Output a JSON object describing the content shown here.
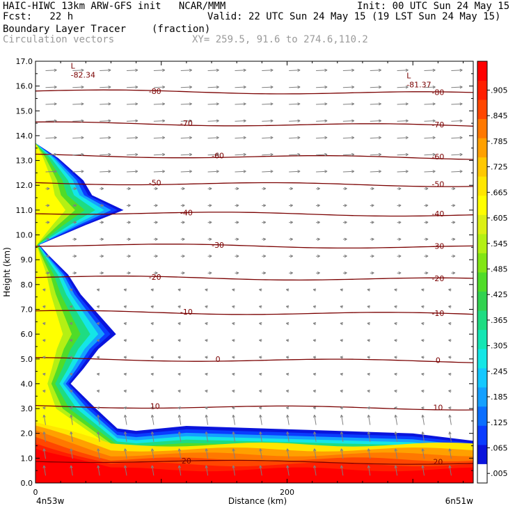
{
  "header": {
    "line1_left": "HAIC-HIWC 13km ARW-GFS init   NCAR/MMM",
    "line1_right": "Init: 00 UTC Sun 24 May 15",
    "line2_left": "Fcst:   22 h",
    "line2_right": "Valid: 22 UTC Sun 24 May 15 (19 LST Sun 24 May 15)",
    "field_name": "Boundary Layer Tracer",
    "field_units": "(fraction)",
    "vector_name": "Circulation vectors",
    "xy_text": "XY= 259.5, 91.6 to 274.6,110.2"
  },
  "colors": {
    "contour": "#7a0000",
    "vector": "#808080",
    "colorbar": [
      "#ffffff",
      "#0a14dc",
      "#0a3cff",
      "#0a6eff",
      "#14a0ff",
      "#14c8ff",
      "#14e6e6",
      "#14e6b4",
      "#1edc82",
      "#32d250",
      "#50dc28",
      "#82e614",
      "#b4f014",
      "#dcf014",
      "#ffff00",
      "#ffe600",
      "#ffc800",
      "#ffa000",
      "#ff7800",
      "#ff4600",
      "#ff1e00",
      "#ff0000"
    ]
  },
  "chart_data": {
    "type": "heatmap",
    "title": "Boundary Layer Tracer",
    "units": "(fraction)",
    "overlay": "Circulation vectors",
    "xlabel": "Distance (km)",
    "ylabel": "Height (km)",
    "xlim": [
      0,
      348
    ],
    "ylim": [
      0,
      17
    ],
    "x_ticks": [
      0,
      200
    ],
    "x_endpoints": [
      "4n53w",
      "6n51w"
    ],
    "y_ticks": [
      "0.0",
      "1.0",
      "2.0",
      "3.0",
      "4.0",
      "5.0",
      "6.0",
      "7.0",
      "8.0",
      "9.0",
      "10.0",
      "11.0",
      "12.0",
      "13.0",
      "14.0",
      "15.0",
      "16.0",
      "17.0"
    ],
    "colorbar_ticks": [
      ".005",
      ".065",
      ".125",
      ".185",
      ".245",
      ".305",
      ".365",
      ".425",
      ".485",
      ".545",
      ".605",
      ".665",
      ".725",
      ".785",
      ".845",
      ".905"
    ],
    "plume_profile": {
      "description": "left-edge extent of tracer plume (height km, distance km)",
      "points": [
        [
          0.0,
          348
        ],
        [
          1.7,
          348
        ],
        [
          2.0,
          300
        ],
        [
          2.3,
          120
        ],
        [
          2.1,
          80
        ],
        [
          2.2,
          65
        ],
        [
          3.0,
          48
        ],
        [
          4.0,
          28
        ],
        [
          4.6,
          38
        ],
        [
          5.4,
          50
        ],
        [
          6.0,
          64
        ],
        [
          6.8,
          50
        ],
        [
          7.6,
          36
        ],
        [
          8.4,
          26
        ],
        [
          9.2,
          10
        ],
        [
          9.6,
          3
        ],
        [
          10.4,
          40
        ],
        [
          11.0,
          70
        ],
        [
          11.6,
          45
        ],
        [
          12.2,
          38
        ],
        [
          13.1,
          18
        ],
        [
          13.7,
          0
        ]
      ]
    },
    "contours": [
      {
        "label": "-80",
        "y": 15.8
      },
      {
        "label": "-70",
        "y": 14.5
      },
      {
        "label": "-60",
        "y": 13.2
      },
      {
        "label": "-50",
        "y": 12.1
      },
      {
        "label": "-40",
        "y": 10.9
      },
      {
        "label": "-30",
        "y": 9.6
      },
      {
        "label": "-20",
        "y": 8.3
      },
      {
        "label": "-10",
        "y": 6.9
      },
      {
        "label": "0",
        "y": 5.0
      },
      {
        "label": "10",
        "y": 3.1
      },
      {
        "label": "20",
        "y": 0.9
      }
    ],
    "lows": [
      {
        "label": "L",
        "value": "-82.34",
        "x": 28,
        "y": 16.6
      },
      {
        "label": "L",
        "value": "-81.37",
        "x": 295,
        "y": 16.2
      }
    ]
  },
  "footer": {
    "xlabel": "Distance (km)",
    "left_end": "4n53w",
    "right_end": "6n51w"
  }
}
